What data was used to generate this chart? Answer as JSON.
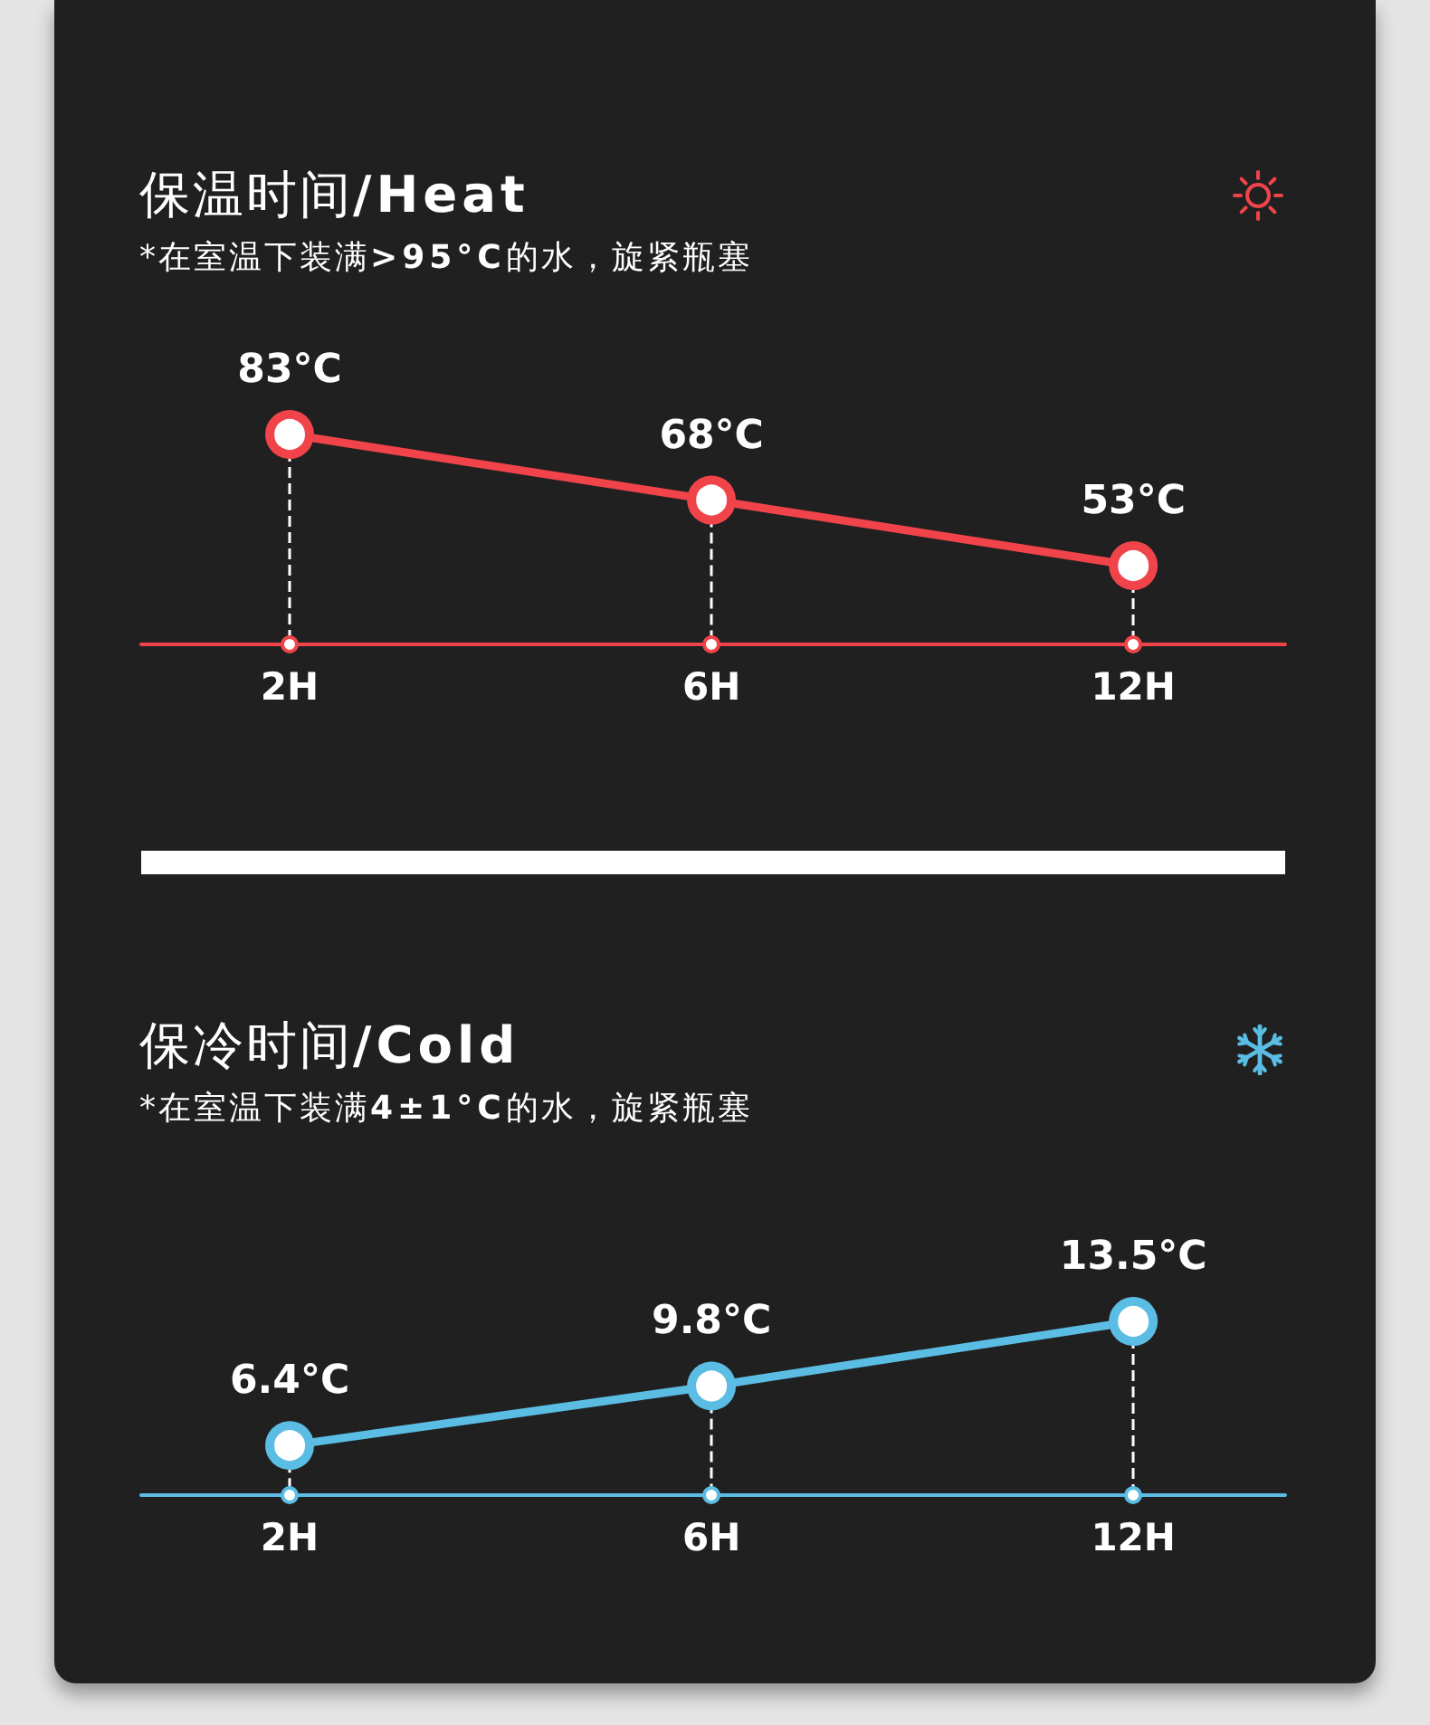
{
  "chart_data": [
    {
      "type": "line",
      "title": "保温时间/Heat",
      "subtitle": "*在室温下装满>95°C的水，旋紧瓶塞",
      "categories": [
        "2H",
        "6H",
        "12H"
      ],
      "values": [
        83,
        68,
        53
      ],
      "value_labels": [
        "83°C",
        "68°C",
        "53°C"
      ],
      "color": "#f0434a",
      "marker": "circle",
      "line_style": "solid"
    },
    {
      "type": "line",
      "title": "保冷时间/Cold",
      "subtitle": "*在室温下装满4±1°C的水，旋紧瓶塞",
      "categories": [
        "2H",
        "6H",
        "12H"
      ],
      "values": [
        6.4,
        9.8,
        13.5
      ],
      "value_labels": [
        "6.4°C",
        "9.8°C",
        "13.5°C"
      ],
      "color": "#5bbde4",
      "marker": "circle",
      "line_style": "solid"
    }
  ]
}
